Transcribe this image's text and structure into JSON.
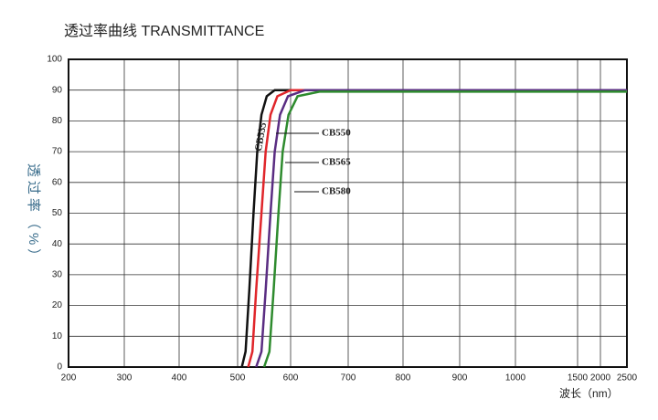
{
  "chart_data": {
    "type": "line",
    "title": "透过率曲线 TRANSMITTANCE",
    "y_label": "透过率（%）",
    "x_label": "波长（nm）",
    "xlim": [
      200,
      2500
    ],
    "xticks": [
      200,
      300,
      400,
      500,
      600,
      700,
      800,
      900,
      1000,
      1500,
      2000,
      2500
    ],
    "ylim": [
      0,
      100
    ],
    "yticks": [
      0,
      10,
      20,
      30,
      40,
      50,
      60,
      70,
      80,
      90,
      100
    ],
    "grid": true,
    "series": [
      {
        "name": "CB535",
        "color": "#111111",
        "x": [
          508,
          515,
          522,
          530,
          537,
          545,
          555,
          570,
          2500
        ],
        "values": [
          0,
          5,
          25,
          50,
          70,
          82,
          88,
          90,
          90
        ]
      },
      {
        "name": "CB550",
        "color": "#e0262b",
        "x": [
          520,
          528,
          535,
          545,
          553,
          562,
          575,
          600,
          2500
        ],
        "values": [
          0,
          5,
          25,
          50,
          70,
          82,
          88,
          90,
          90
        ]
      },
      {
        "name": "CB565",
        "color": "#5a2d82",
        "x": [
          535,
          545,
          553,
          562,
          570,
          580,
          595,
          625,
          2500
        ],
        "values": [
          0,
          5,
          25,
          50,
          70,
          82,
          88,
          90,
          90
        ]
      },
      {
        "name": "CB580",
        "color": "#2e8b2e",
        "x": [
          550,
          560,
          568,
          577,
          585,
          596,
          612,
          650,
          2500
        ],
        "values": [
          0,
          5,
          25,
          50,
          70,
          82,
          88,
          89.5,
          89.5
        ]
      }
    ]
  }
}
